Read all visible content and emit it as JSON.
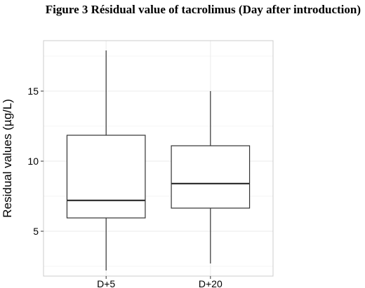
{
  "title": "Figure 3  Résidual value of tacrolimus (Day after introduction)",
  "chart_data": {
    "type": "boxplot",
    "title": "Figure 3  Résidual value of tacrolimus (Day after introduction)",
    "xlabel": "",
    "ylabel": "Residual values (µg/L)",
    "categories": [
      "D+5",
      "D+20"
    ],
    "boxes": [
      {
        "category": "D+5",
        "min": 2.2,
        "q1": 5.95,
        "median": 7.2,
        "q3": 11.85,
        "max": 17.9
      },
      {
        "category": "D+20",
        "min": 2.7,
        "q1": 6.65,
        "median": 8.4,
        "q3": 11.1,
        "max": 15.0
      }
    ],
    "ylim": [
      1.8,
      18.6
    ],
    "yticks": [
      5,
      10,
      15
    ],
    "grid": true,
    "colors": {
      "box_fill": "#ffffff",
      "box_stroke": "#333333",
      "grid": "#ebebeb",
      "panel_border": "#cccccc"
    }
  }
}
